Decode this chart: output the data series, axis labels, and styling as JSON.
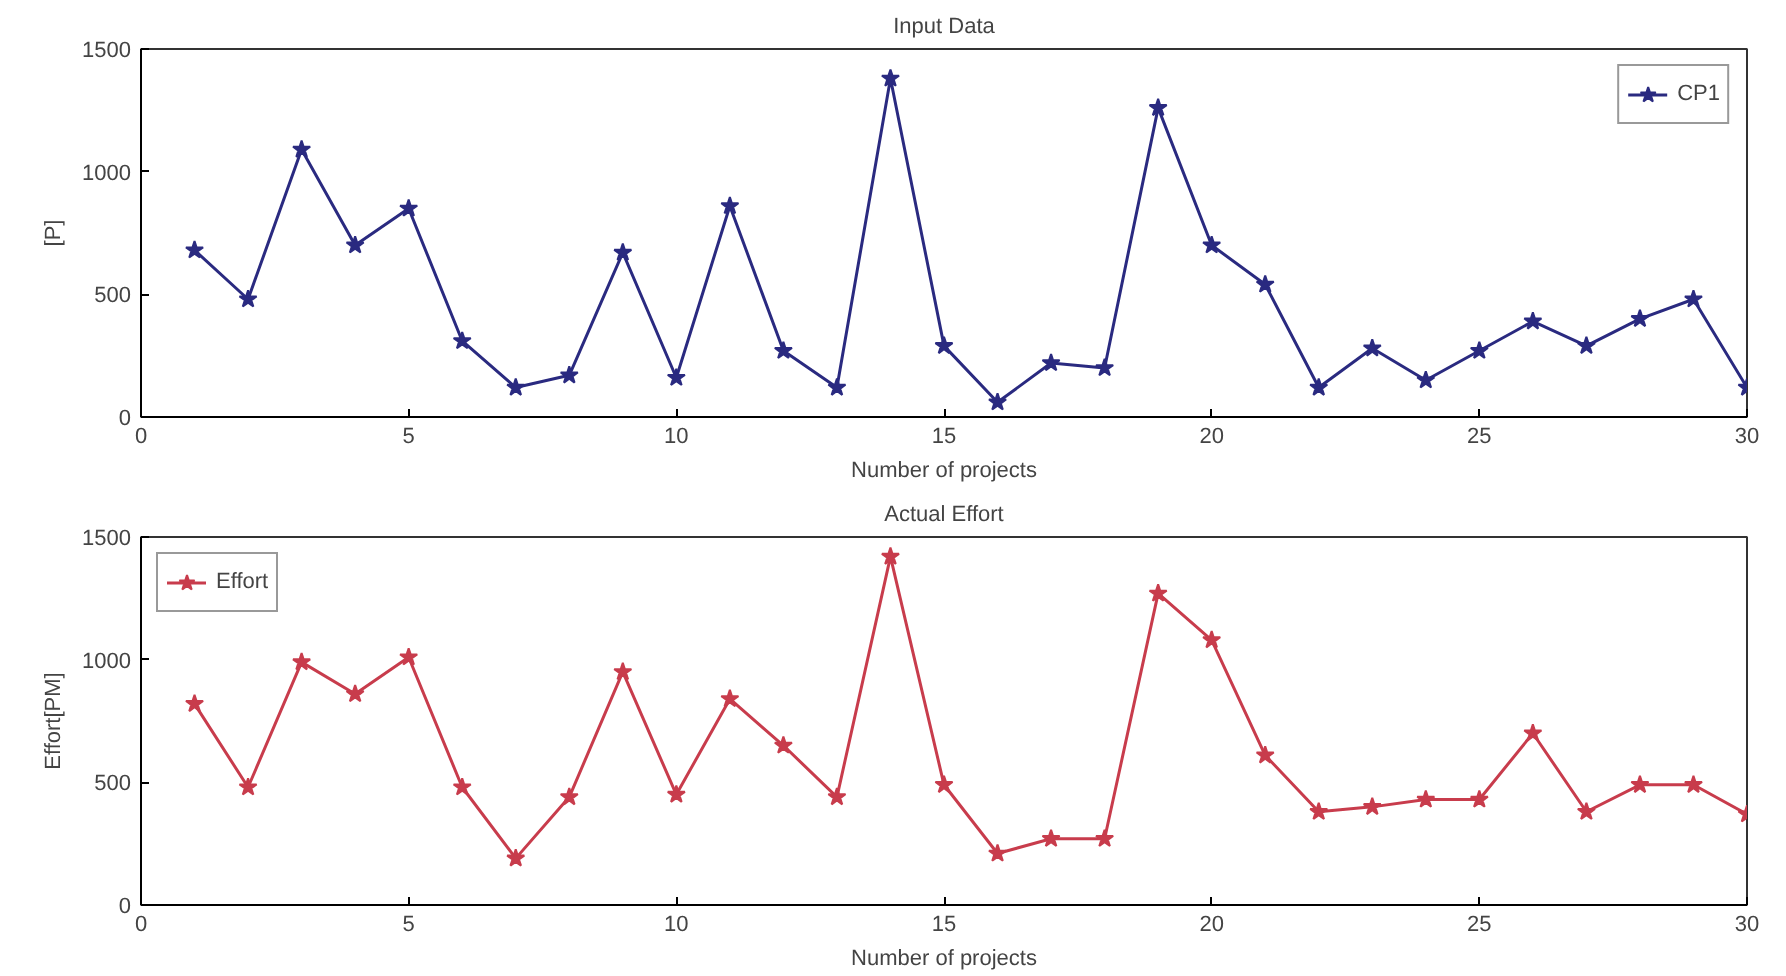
{
  "chart_data": [
    {
      "type": "line",
      "title": "Input Data",
      "xlabel": "Number of projects",
      "ylabel": "[P]",
      "x": [
        1,
        2,
        3,
        4,
        5,
        6,
        7,
        8,
        9,
        10,
        11,
        12,
        13,
        14,
        15,
        16,
        17,
        18,
        19,
        20,
        21,
        22,
        23,
        24,
        25,
        26,
        27,
        28,
        29,
        30
      ],
      "series": [
        {
          "name": "CP1",
          "color": "#2a2a80",
          "values": [
            680,
            480,
            1090,
            700,
            850,
            310,
            120,
            170,
            670,
            160,
            860,
            270,
            120,
            1380,
            290,
            60,
            220,
            200,
            1260,
            700,
            540,
            120,
            280,
            150,
            270,
            390,
            290,
            400,
            480,
            120
          ]
        }
      ],
      "xlim": [
        0,
        30
      ],
      "xticks": [
        0,
        5,
        10,
        15,
        20,
        25,
        30
      ],
      "ylim": [
        0,
        1500
      ],
      "yticks": [
        0,
        500,
        1000,
        1500
      ],
      "grid": false,
      "legend": "top right",
      "marker": "star",
      "line_style": "solid"
    },
    {
      "type": "line",
      "title": "Actual Effort",
      "xlabel": "Number of projects",
      "ylabel": "Effort[PM]",
      "x": [
        1,
        2,
        3,
        4,
        5,
        6,
        7,
        8,
        9,
        10,
        11,
        12,
        13,
        14,
        15,
        16,
        17,
        18,
        19,
        20,
        21,
        22,
        23,
        24,
        25,
        26,
        27,
        28,
        29,
        30
      ],
      "series": [
        {
          "name": "Effort",
          "color": "#c83c4c",
          "values": [
            820,
            480,
            990,
            860,
            1010,
            480,
            190,
            440,
            950,
            450,
            840,
            650,
            440,
            1420,
            490,
            210,
            270,
            270,
            1270,
            1080,
            610,
            380,
            400,
            430,
            430,
            700,
            380,
            490,
            490,
            370
          ]
        }
      ],
      "xlim": [
        0,
        30
      ],
      "xticks": [
        0,
        5,
        10,
        15,
        20,
        25,
        30
      ],
      "ylim": [
        0,
        1500
      ],
      "yticks": [
        0,
        500,
        1000,
        1500
      ],
      "grid": false,
      "legend": "top left",
      "marker": "star",
      "line_style": "solid"
    }
  ]
}
